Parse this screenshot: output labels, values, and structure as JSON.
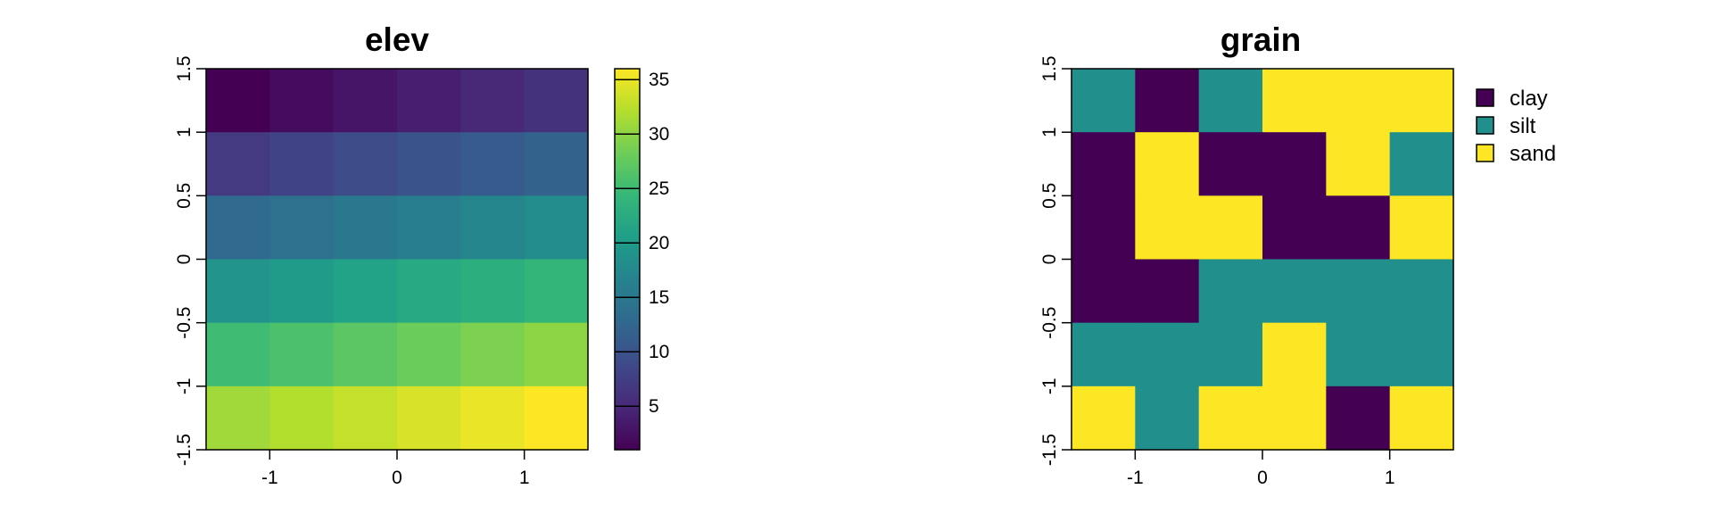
{
  "colors": {
    "axis": "#000000",
    "background": "#ffffff",
    "viridis": [
      "#440154",
      "#482878",
      "#3E4A89",
      "#31688E",
      "#26828E",
      "#1F9E89",
      "#35B779",
      "#6DCD59",
      "#B4DE2C",
      "#FDE725"
    ]
  },
  "chart_data": [
    {
      "type": "heatmap",
      "title": "elev",
      "xlabel": "",
      "ylabel": "",
      "xlim": [
        -1.5,
        1.5
      ],
      "ylim": [
        -1.5,
        1.5
      ],
      "x_ticks": [
        -1,
        0,
        1
      ],
      "x_tick_labels": [
        "-1",
        "0",
        "1"
      ],
      "y_ticks": [
        -1.5,
        -1,
        -0.5,
        0,
        0.5,
        1,
        1.5
      ],
      "y_tick_labels": [
        "-1.5",
        "-1",
        "-0.5",
        "0",
        "0.5",
        "1",
        "1.5"
      ],
      "grid": false,
      "ncols": 6,
      "nrows": 6,
      "values": [
        [
          1,
          2,
          3,
          4,
          5,
          6
        ],
        [
          7,
          8,
          9,
          10,
          11,
          12
        ],
        [
          13,
          14,
          15,
          16,
          17,
          18
        ],
        [
          19,
          20,
          21,
          22,
          23,
          24
        ],
        [
          25,
          26,
          27,
          28,
          29,
          30
        ],
        [
          31,
          32,
          33,
          34,
          35,
          36
        ]
      ],
      "colorbar": {
        "range": [
          1,
          36
        ],
        "ticks": [
          5,
          10,
          15,
          20,
          25,
          30,
          35
        ],
        "tick_labels": [
          "5",
          "10",
          "15",
          "20",
          "25",
          "30",
          "35"
        ],
        "placement": "right"
      }
    },
    {
      "type": "heatmap",
      "title": "grain",
      "xlabel": "",
      "ylabel": "",
      "xlim": [
        -1.5,
        1.5
      ],
      "ylim": [
        -1.5,
        1.5
      ],
      "x_ticks": [
        -1,
        0,
        1
      ],
      "x_tick_labels": [
        "-1",
        "0",
        "1"
      ],
      "y_ticks": [
        -1.5,
        -1,
        -0.5,
        0,
        0.5,
        1,
        1.5
      ],
      "y_tick_labels": [
        "-1.5",
        "-1",
        "-0.5",
        "0",
        "0.5",
        "1",
        "1.5"
      ],
      "grid": false,
      "ncols": 6,
      "nrows": 6,
      "categories": [
        "clay",
        "silt",
        "sand"
      ],
      "category_colors": [
        "#440154",
        "#21908C",
        "#FDE725"
      ],
      "values": [
        [
          "silt",
          "clay",
          "silt",
          "sand",
          "sand",
          "sand"
        ],
        [
          "clay",
          "sand",
          "clay",
          "clay",
          "sand",
          "silt"
        ],
        [
          "clay",
          "sand",
          "sand",
          "clay",
          "clay",
          "sand"
        ],
        [
          "clay",
          "clay",
          "silt",
          "silt",
          "silt",
          "silt"
        ],
        [
          "silt",
          "silt",
          "silt",
          "sand",
          "silt",
          "silt"
        ],
        [
          "sand",
          "silt",
          "sand",
          "sand",
          "clay",
          "sand"
        ]
      ],
      "legend": {
        "placement": "right",
        "entries": [
          "clay",
          "silt",
          "sand"
        ]
      }
    }
  ]
}
